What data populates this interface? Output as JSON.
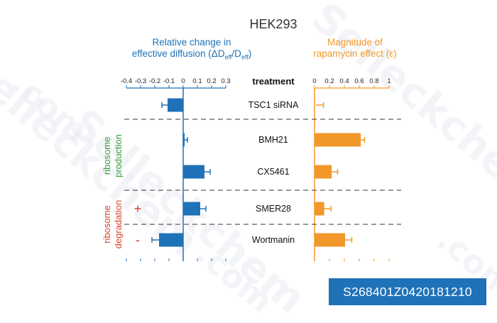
{
  "chart_data": {
    "type": "bar",
    "title": "HEK293",
    "header_label": "treatment",
    "categories": [
      "TSC1 siRNA",
      "BMH21",
      "CX5461",
      "SMER28",
      "Wortmanin"
    ],
    "group_labels": [
      {
        "label": "ribosome production",
        "color": "#3a9b3a",
        "rows": [
          1,
          2
        ]
      },
      {
        "label": "ribosome degradation",
        "color": "#d9422e",
        "rows": [
          3,
          4
        ]
      }
    ],
    "signs": [
      {
        "label": "+",
        "row": 3,
        "color": "#d9422e"
      },
      {
        "label": "-",
        "row": 4,
        "color": "#d9422e"
      }
    ],
    "left_panel": {
      "title_line1": "Relative change in",
      "title_line2_pre": "effective diffusion (ΔD",
      "title_sub1": "eff",
      "title_mid": "/D",
      "title_sub2": "eff",
      "title_post": ")",
      "color": "#1f72b8",
      "xlim": [
        -0.4,
        0.3
      ],
      "xticks": [
        -0.4,
        -0.3,
        -0.2,
        -0.1,
        0,
        0.1,
        0.2,
        0.3
      ],
      "xtick_labels": [
        "-0.4",
        "-0.3",
        "-0.2",
        "-0.1",
        "0",
        "0.1",
        "0.2",
        "0.3"
      ],
      "values": [
        -0.11,
        0.01,
        0.15,
        0.12,
        -0.17
      ],
      "errors": [
        0.04,
        0.02,
        0.04,
        0.04,
        0.05
      ]
    },
    "right_panel": {
      "title_line1": "Magnitude of",
      "title_line2": "rapamycin effect (ε)",
      "color": "#f2982b",
      "xlim": [
        0,
        1
      ],
      "xticks": [
        0,
        0.2,
        0.4,
        0.6,
        0.8,
        1
      ],
      "xtick_labels": [
        "0",
        "0.2",
        "0.4",
        "0.6",
        "0.8",
        "1"
      ],
      "values": [
        0.02,
        0.62,
        0.23,
        0.13,
        0.41
      ],
      "errors": [
        0.1,
        0.05,
        0.08,
        0.09,
        0.09
      ]
    }
  },
  "catalog_number": "S268401Z0420181210",
  "watermark_text": "Selleckchem",
  "watermark_domain": ".com"
}
